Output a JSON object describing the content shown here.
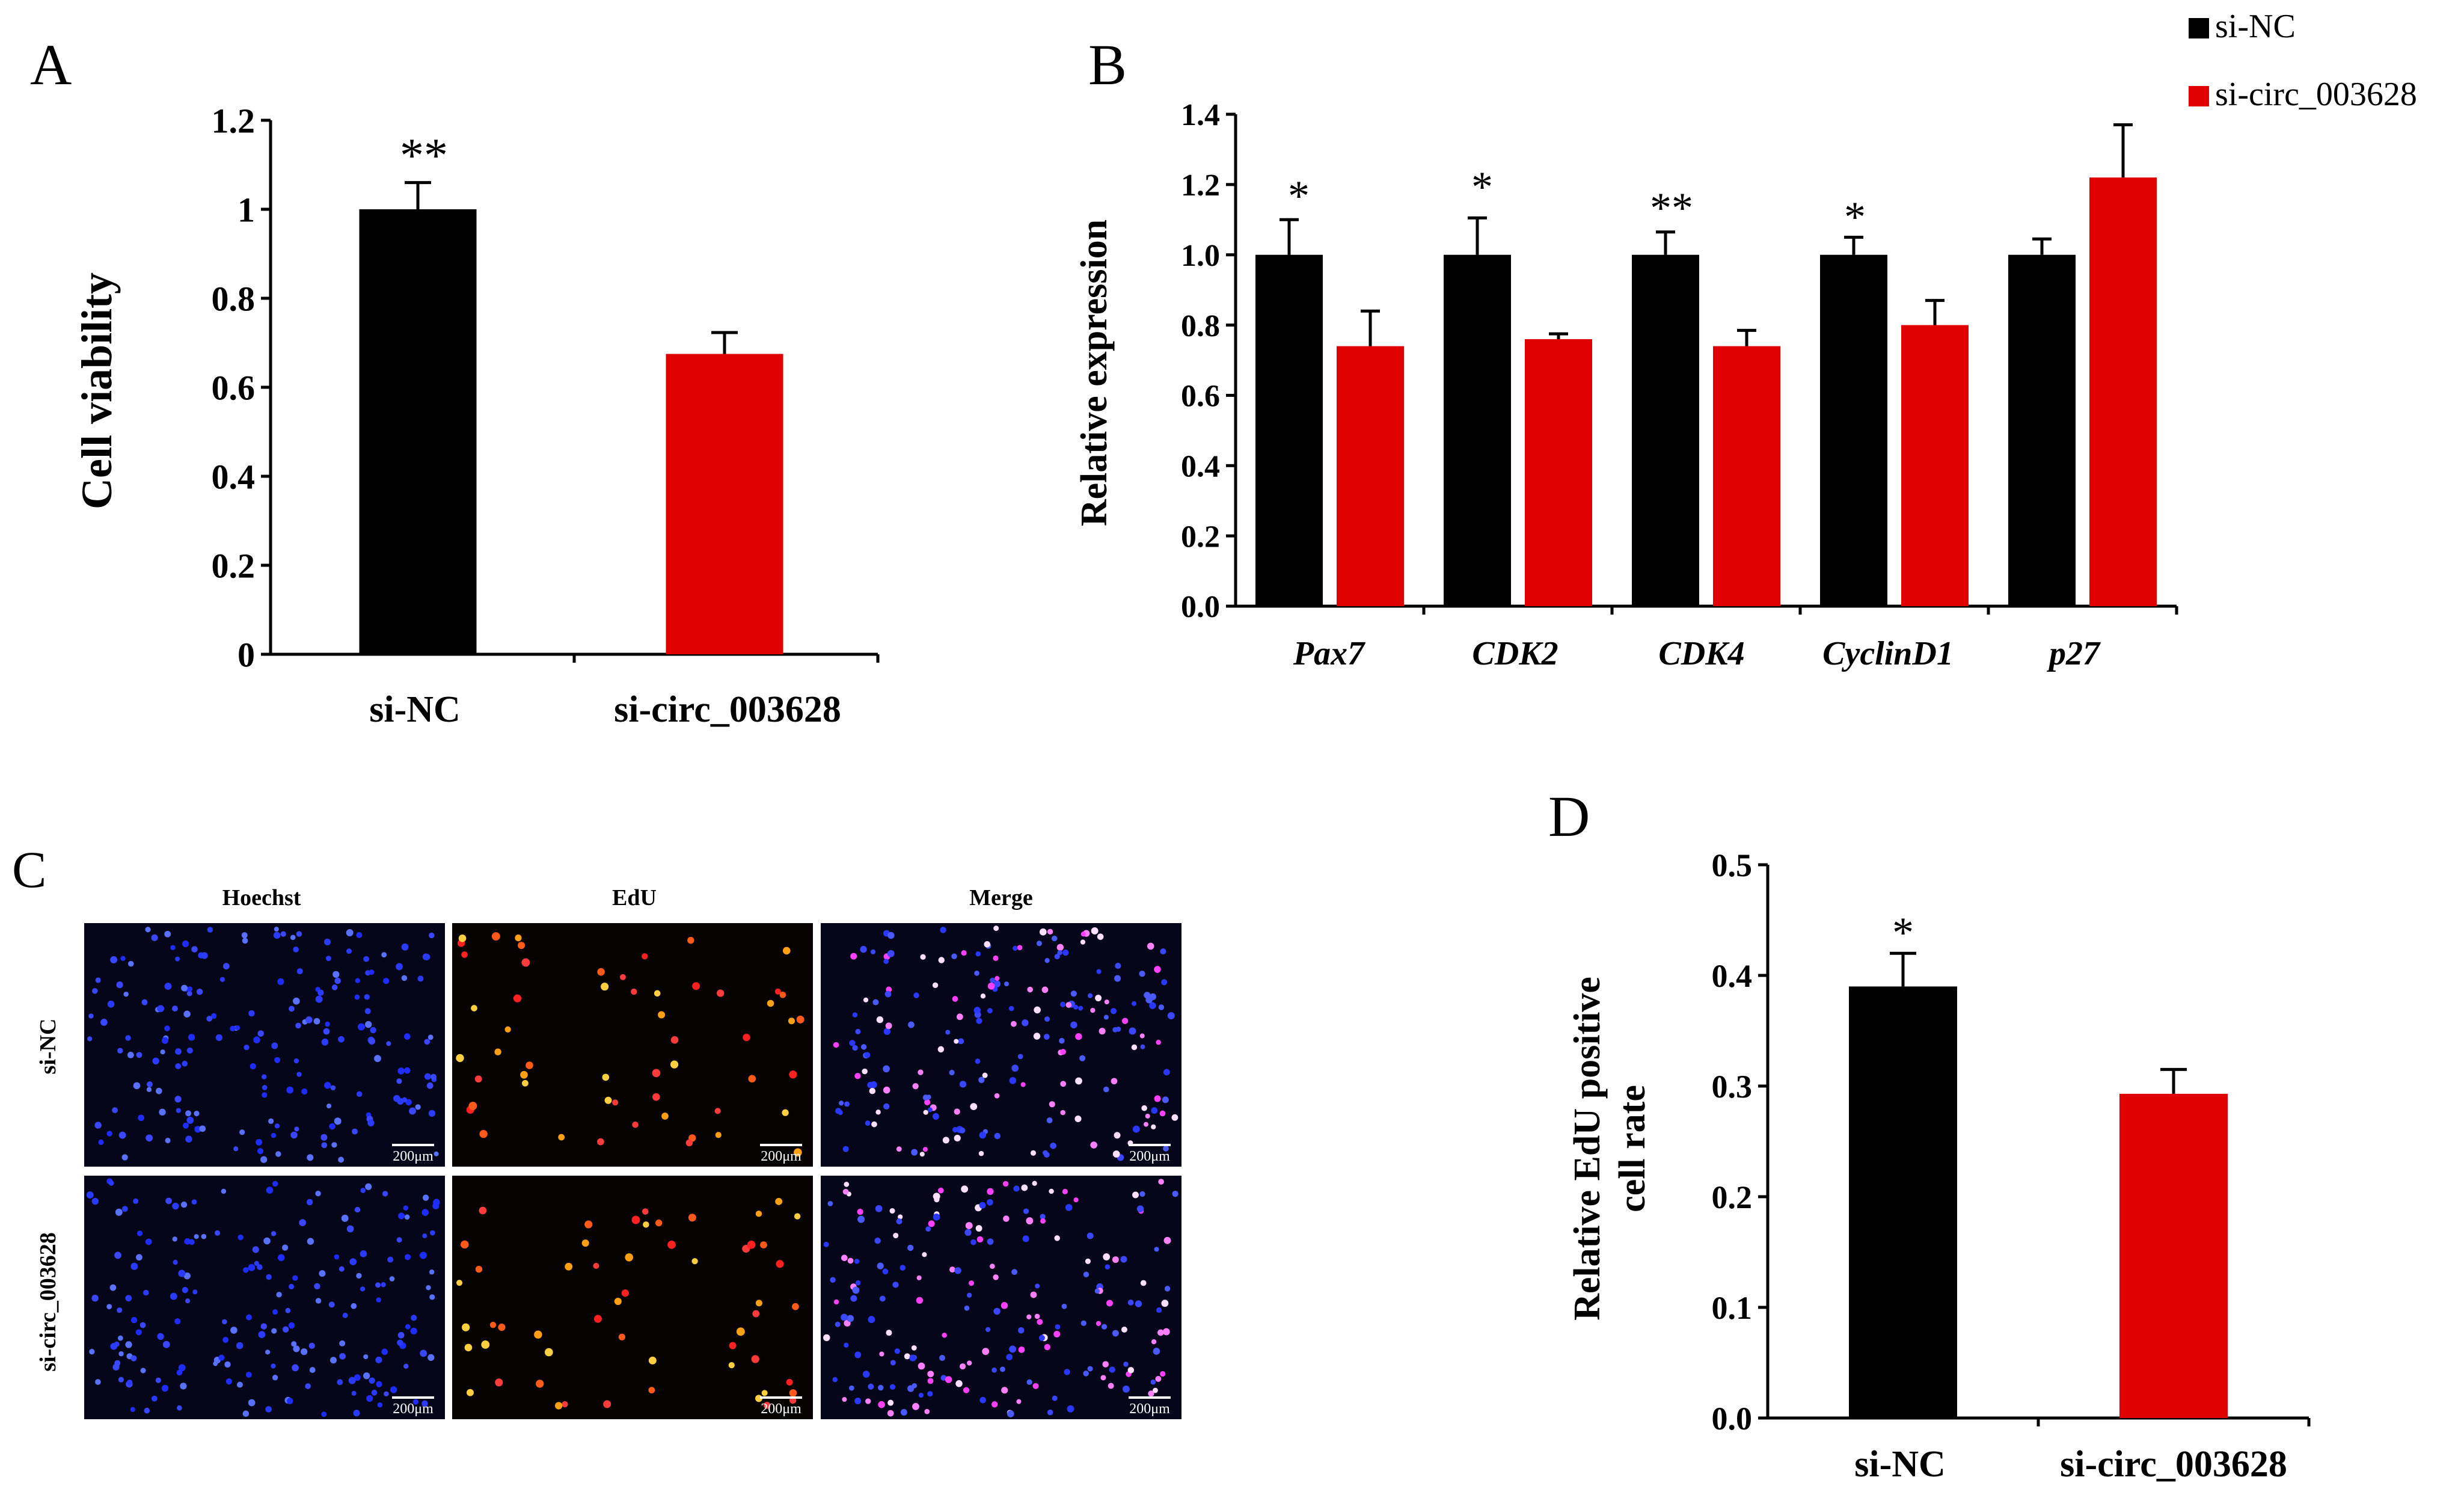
{
  "figure": {
    "panel_labels": [
      "A",
      "B",
      "C",
      "D"
    ]
  },
  "colors": {
    "sinc": "#000000",
    "circ": "#e00000",
    "axis": "#000000"
  },
  "chart_data": [
    {
      "panel": "A",
      "type": "bar",
      "title": "",
      "xlabel": "",
      "ylabel": "Cell viability",
      "ylim": [
        0,
        1.2
      ],
      "yticks": [
        0,
        0.2,
        0.4,
        0.6,
        0.8,
        1.0,
        1.2
      ],
      "ytick_labels": [
        "0",
        "0.2",
        "0.4",
        "0.6",
        "0.8",
        "1",
        "1.2"
      ],
      "categories": [
        "si-NC",
        "si-circ_003628"
      ],
      "values": [
        1.0,
        0.675
      ],
      "errors": [
        0.06,
        0.048
      ],
      "significance": [
        "**",
        ""
      ],
      "colors": [
        "#000000",
        "#e00000"
      ]
    },
    {
      "panel": "B",
      "type": "bar",
      "title": "",
      "xlabel": "",
      "ylabel": "Relative expression",
      "ylim": [
        0,
        1.4
      ],
      "yticks": [
        0,
        0.2,
        0.4,
        0.6,
        0.8,
        1.0,
        1.2,
        1.4
      ],
      "ytick_labels": [
        "0.0",
        "0.2",
        "0.4",
        "0.6",
        "0.8",
        "1.0",
        "1.2",
        "1.4"
      ],
      "categories": [
        "Pax7",
        "CDK2",
        "CDK4",
        "CyclinD1",
        "p27"
      ],
      "series": [
        {
          "name": "si-NC",
          "color": "#000000",
          "values": [
            1.0,
            1.0,
            1.0,
            1.0,
            1.0
          ],
          "errors": [
            0.1,
            0.105,
            0.065,
            0.05,
            0.045
          ]
        },
        {
          "name": "si-circ_003628",
          "color": "#e00000",
          "values": [
            0.74,
            0.76,
            0.74,
            0.8,
            1.22
          ],
          "errors": [
            0.1,
            0.015,
            0.045,
            0.07,
            0.15
          ]
        }
      ],
      "significance": [
        "*",
        "*",
        "**",
        "*",
        ""
      ],
      "legend": {
        "position": "top-right",
        "entries": [
          "si-NC",
          "si-circ_003628"
        ]
      }
    },
    {
      "panel": "D",
      "type": "bar",
      "title": "",
      "xlabel": "",
      "ylabel": [
        "Relative EdU positive",
        "cell rate"
      ],
      "ylim": [
        0,
        0.5
      ],
      "yticks": [
        0,
        0.1,
        0.2,
        0.3,
        0.4,
        0.5
      ],
      "ytick_labels": [
        "0.0",
        "0.1",
        "0.2",
        "0.3",
        "0.4",
        "0.5"
      ],
      "categories": [
        "si-NC",
        "si-circ_003628"
      ],
      "values": [
        0.39,
        0.293
      ],
      "errors": [
        0.03,
        0.022
      ],
      "significance": [
        "*",
        ""
      ],
      "colors": [
        "#000000",
        "#e00000"
      ]
    }
  ],
  "micrographs": {
    "panel": "C",
    "columns": [
      "Hoechst",
      "EdU",
      "Merge"
    ],
    "rows": [
      "si-NC",
      "si-circ_003628"
    ],
    "scale_bar": "200μm"
  }
}
